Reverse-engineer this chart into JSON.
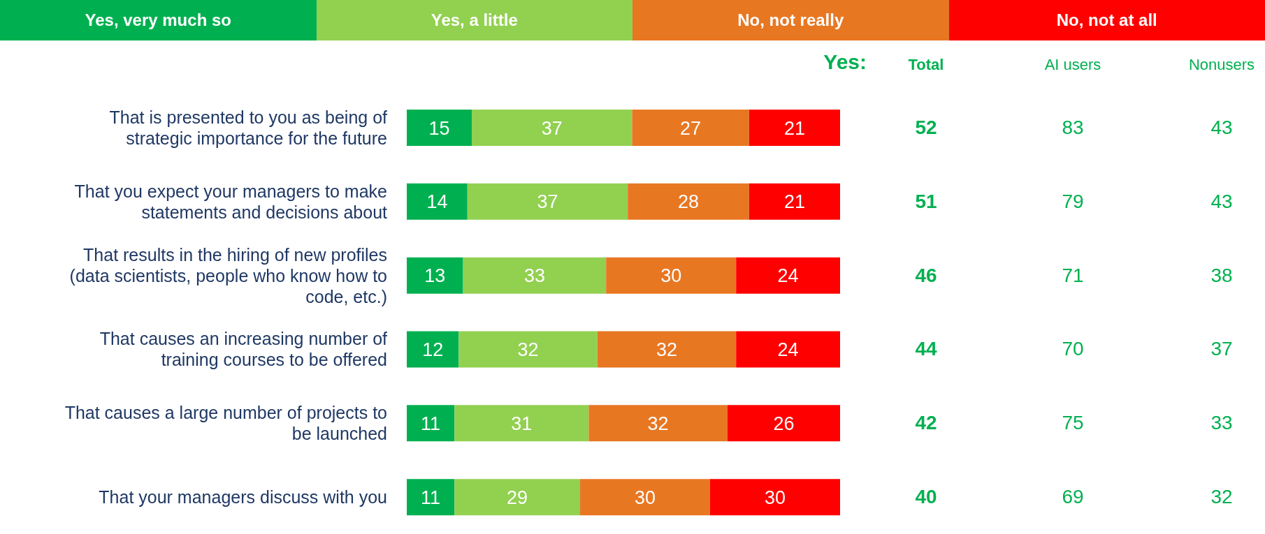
{
  "chart_data": [
    {
      "type": "bar",
      "orientation": "horizontal",
      "stacked": true,
      "data_labels": true,
      "legend": "top",
      "categories": [
        "That is presented to you as being of strategic importance for the future",
        "That you expect your managers to make statements and decisions about",
        "That results in the hiring of new profiles (data scientists, people who know how to code, etc.)",
        "That causes an increasing number of training courses to be offered",
        "That causes a large number of projects to be launched",
        "That your managers discuss with you"
      ],
      "series": [
        {
          "name": "Yes, very much so",
          "color": "#00b050",
          "values": [
            15,
            14,
            13,
            12,
            11,
            11
          ]
        },
        {
          "name": "Yes, a little",
          "color": "#92d050",
          "values": [
            37,
            37,
            33,
            32,
            31,
            29
          ]
        },
        {
          "name": "No, not really",
          "color": "#e87722",
          "values": [
            27,
            28,
            30,
            32,
            32,
            30
          ]
        },
        {
          "name": "No, not at all",
          "color": "#ff0000",
          "values": [
            21,
            21,
            24,
            24,
            26,
            30
          ]
        }
      ]
    },
    {
      "type": "other",
      "title": "Yes:",
      "data_labels": true,
      "categories": [
        "Total",
        "AI users",
        "Nonusers"
      ],
      "series": [
        {
          "color": "#00b050",
          "values": [
            52,
            83,
            43
          ]
        },
        {
          "color": "#00b050",
          "values": [
            51,
            79,
            43
          ]
        },
        {
          "color": "#00b050",
          "values": [
            46,
            71,
            38
          ]
        },
        {
          "color": "#00b050",
          "values": [
            44,
            70,
            37
          ]
        },
        {
          "color": "#00b050",
          "values": [
            42,
            75,
            33
          ]
        },
        {
          "color": "#00b050",
          "values": [
            40,
            69,
            32
          ]
        }
      ]
    }
  ]
}
